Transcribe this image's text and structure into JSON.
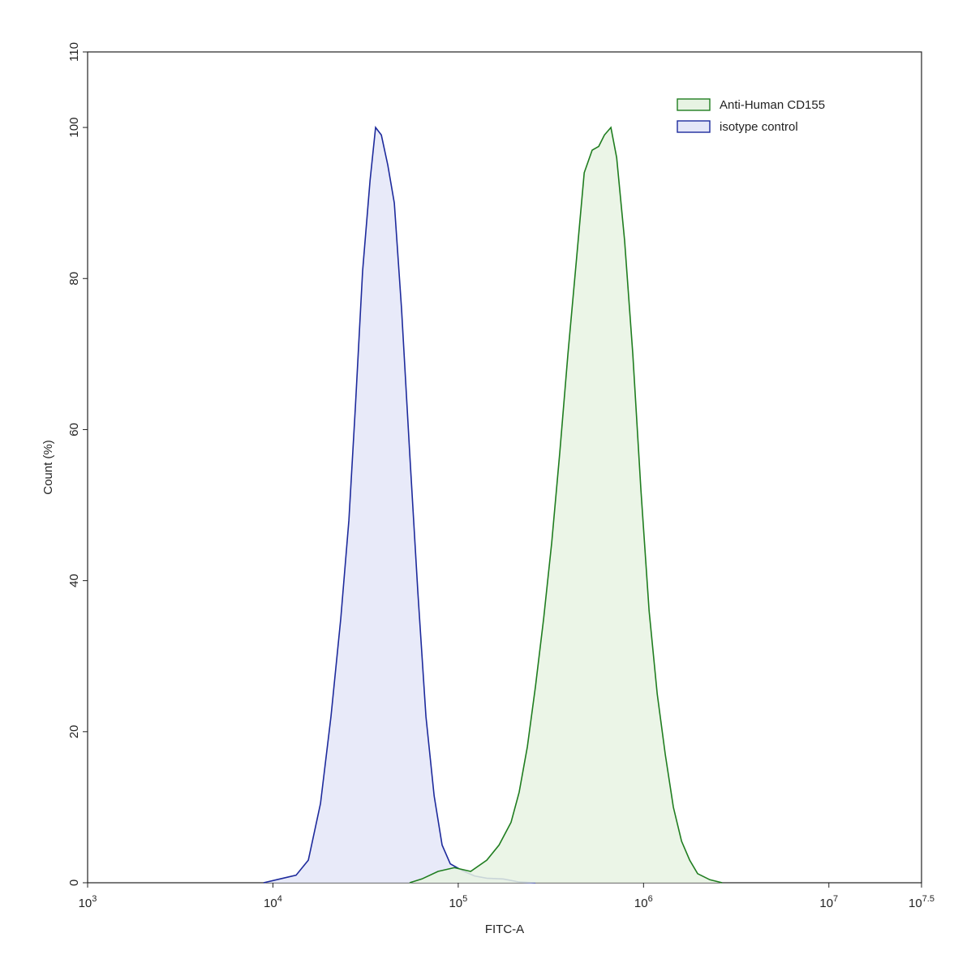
{
  "chart_data": {
    "type": "histogram-overlay",
    "x_label": "FITC-A",
    "y_label": "Count  (%)",
    "xscale": "log",
    "xlim": [
      1000,
      31622776.6
    ],
    "ylim": [
      0,
      110
    ],
    "xticks": [
      {
        "value": 1000,
        "label": "10",
        "sup": "3"
      },
      {
        "value": 10000,
        "label": "10",
        "sup": "4"
      },
      {
        "value": 100000,
        "label": "10",
        "sup": "5"
      },
      {
        "value": 1000000,
        "label": "10",
        "sup": "6"
      },
      {
        "value": 10000000,
        "label": "10",
        "sup": "7"
      },
      {
        "value": 31622776.6,
        "label": "10",
        "sup": "7.5"
      }
    ],
    "yticks": [
      0,
      20,
      40,
      60,
      80,
      100,
      110
    ],
    "legend": "top-right",
    "series": [
      {
        "name": "Anti-Human CD155",
        "color": "#1f7d1f",
        "fill": "#e7f3e3",
        "x": [
          54700,
          63680,
          77800,
          95280,
          116700,
          142600,
          166000,
          192800,
          213300,
          236000,
          261200,
          289100,
          319300,
          353200,
          390900,
          432500,
          478600,
          528400,
          572800,
          615200,
          666800,
          716100,
          790700,
          875000,
          968300,
          1071500,
          1185800,
          1309200,
          1448800,
          1603100,
          1774100,
          1958800,
          2280400,
          2654600
        ],
        "values": [
          0,
          0.5,
          1.5,
          2,
          1.5,
          3,
          5,
          8,
          12,
          18,
          26,
          35,
          45,
          57,
          70,
          82,
          94,
          97,
          97.5,
          99,
          100,
          96,
          85,
          70,
          52,
          36,
          25,
          17,
          10,
          5.5,
          3,
          1.2,
          0.4,
          0
        ]
      },
      {
        "name": "isotype control",
        "color": "#1d2a9c",
        "fill": "#e4e6f8",
        "x": [
          8913,
          10910,
          13340,
          15520,
          18070,
          20570,
          23230,
          25700,
          27860,
          30480,
          33420,
          35810,
          38460,
          41690,
          45190,
          49430,
          54700,
          60530,
          66990,
          74130,
          81850,
          90570,
          105400,
          122500,
          142600,
          174600,
          213300,
          261200
        ],
        "values": [
          0,
          0.5,
          1,
          3,
          10.5,
          22,
          35,
          48,
          63,
          81,
          93,
          100,
          99,
          95,
          90,
          76,
          57,
          38.5,
          22,
          11.5,
          5,
          2.5,
          1.6,
          0.9,
          0.6,
          0.5,
          0.1,
          0
        ]
      }
    ]
  }
}
